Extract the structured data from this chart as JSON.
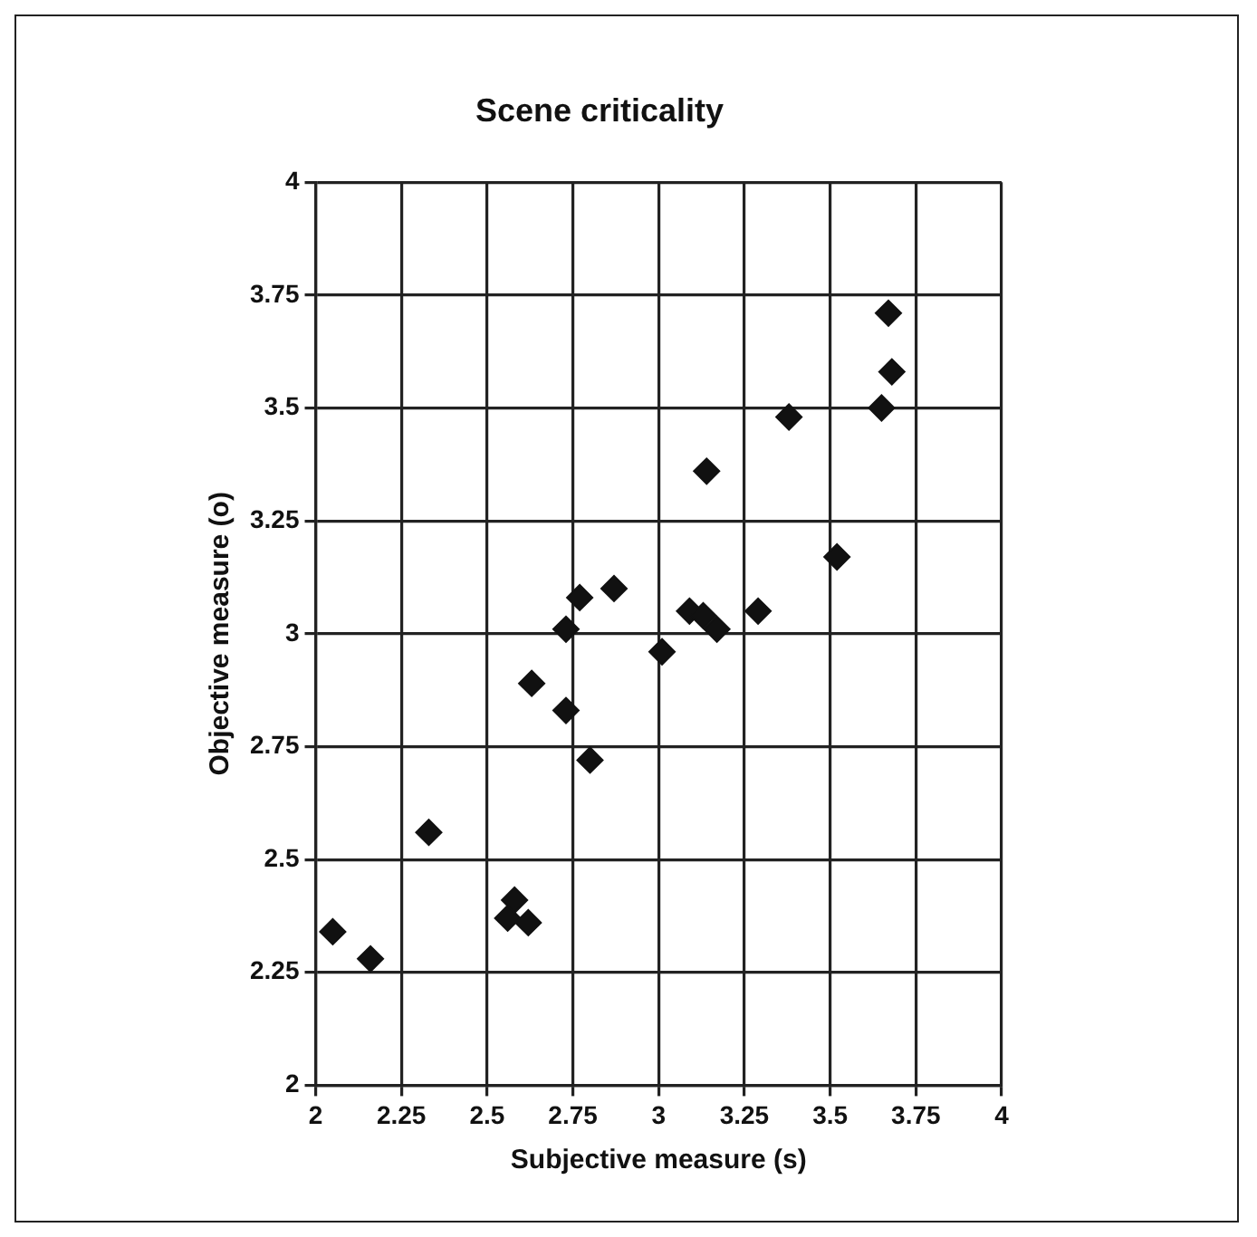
{
  "chart_data": {
    "type": "scatter",
    "title": "Scene criticality",
    "xlabel": "Subjective measure (s)",
    "ylabel": "Objective measure (o)",
    "x": [
      2.05,
      2.16,
      2.33,
      2.56,
      2.58,
      2.62,
      2.63,
      2.73,
      2.73,
      2.77,
      2.8,
      2.87,
      3.01,
      3.09,
      3.13,
      3.14,
      3.17,
      3.29,
      3.38,
      3.52,
      3.65,
      3.67,
      3.68
    ],
    "values": [
      2.34,
      2.28,
      2.56,
      2.37,
      2.41,
      2.36,
      2.89,
      3.01,
      2.83,
      3.08,
      2.72,
      3.1,
      2.96,
      3.05,
      3.04,
      3.36,
      3.01,
      3.05,
      3.48,
      3.17,
      3.5,
      3.71,
      3.58
    ],
    "color": "#111111",
    "marker": "diamond",
    "grid": true,
    "legend": false,
    "xlim": [
      2,
      4
    ],
    "xticks": [
      2,
      2.25,
      2.5,
      2.75,
      3,
      3.25,
      3.5,
      3.75,
      4
    ],
    "ylim": [
      2,
      4
    ],
    "yticks": [
      2,
      2.25,
      2.5,
      2.75,
      3,
      3.25,
      3.5,
      3.75,
      4
    ]
  }
}
